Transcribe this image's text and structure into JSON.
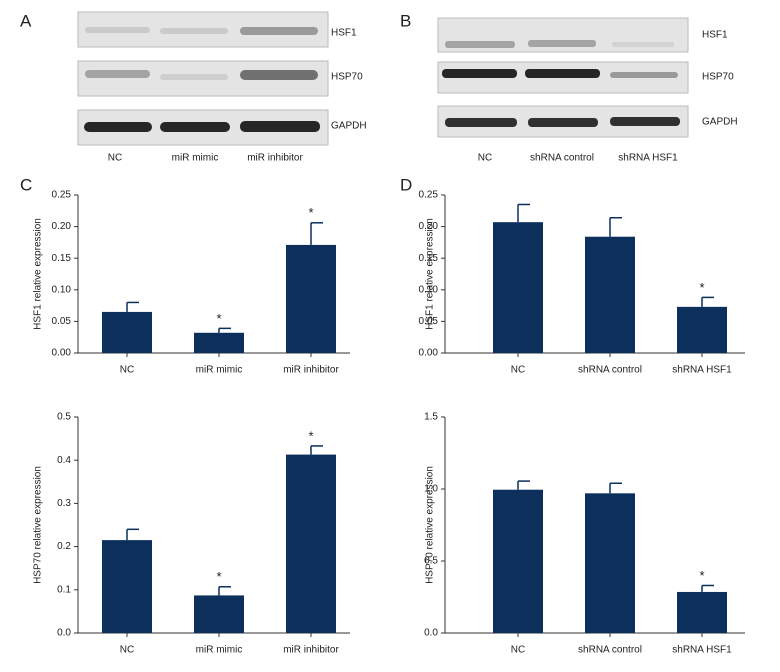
{
  "blots": [
    {
      "panel": "A",
      "rows": [
        "HSF1",
        "HSP70",
        "GAPDH"
      ],
      "lanes": [
        "NC",
        "miR mimic",
        "miR inhibitor"
      ]
    },
    {
      "panel": "B",
      "rows": [
        "HSF1",
        "HSP70",
        "GAPDH"
      ],
      "lanes": [
        "NC",
        "shRNA control",
        "shRNA HSF1"
      ]
    }
  ],
  "chart_panels": [
    "C",
    "D"
  ],
  "chart_data": [
    {
      "type": "bar",
      "ylabel": "HSF1 relative expression",
      "categories": [
        "NC",
        "miR mimic",
        "miR inhibitor"
      ],
      "values": [
        0.065,
        0.032,
        0.171
      ],
      "errors": [
        0.015,
        0.007,
        0.035
      ],
      "annotations": [
        null,
        "*",
        "*"
      ],
      "color": "#0c2f5c",
      "ylim": [
        0,
        0.25
      ],
      "yticks": [
        {
          "value": 0,
          "label": "0.00"
        },
        {
          "value": 0.05,
          "label": "0.05"
        },
        {
          "value": 0.1,
          "label": "0.10"
        },
        {
          "value": 0.15,
          "label": "0.15"
        },
        {
          "value": 0.2,
          "label": "0.20"
        },
        {
          "value": 0.25,
          "label": "0.25"
        }
      ]
    },
    {
      "type": "bar",
      "ylabel": "HSP70 relative expression",
      "categories": [
        "NC",
        "miR mimic",
        "miR inhibitor"
      ],
      "values": [
        0.215,
        0.087,
        0.413
      ],
      "errors": [
        0.025,
        0.02,
        0.02
      ],
      "annotations": [
        null,
        "*",
        "*"
      ],
      "color": "#0c2f5c",
      "ylim": [
        0,
        0.5
      ],
      "yticks": [
        {
          "value": 0,
          "label": "0.0"
        },
        0.1,
        0.2,
        0.3,
        0.4,
        0.5
      ]
    },
    {
      "type": "bar",
      "ylabel": "HSF1 relative expression",
      "categories": [
        "NC",
        "shRNA control",
        "shRNA HSF1"
      ],
      "values": [
        0.207,
        0.184,
        0.073
      ],
      "errors": [
        0.028,
        0.03,
        0.015
      ],
      "annotations": [
        null,
        null,
        "*"
      ],
      "color": "#0c2f5c",
      "ylim": [
        0,
        0.25
      ],
      "yticks": [
        {
          "value": 0,
          "label": "0.00"
        },
        {
          "value": 0.05,
          "label": "0.05"
        },
        {
          "value": 0.1,
          "label": "0.10"
        },
        {
          "value": 0.15,
          "label": "0.15"
        },
        {
          "value": 0.2,
          "label": "0.20"
        },
        {
          "value": 0.25,
          "label": "0.25"
        }
      ]
    },
    {
      "type": "bar",
      "ylabel": "HSP70 relative expression",
      "categories": [
        "NC",
        "shRNA control",
        "shRNA HSF1"
      ],
      "values": [
        0.995,
        0.97,
        0.285
      ],
      "errors": [
        0.06,
        0.07,
        0.045
      ],
      "annotations": [
        null,
        null,
        "*"
      ],
      "color": "#0c2f5c",
      "ylim": [
        0,
        1.5
      ],
      "yticks": [
        {
          "value": 0,
          "label": "0.0"
        },
        0.5,
        {
          "value": 1,
          "label": "1.0"
        },
        {
          "value": 1.5,
          "label": "1.5"
        }
      ]
    }
  ]
}
